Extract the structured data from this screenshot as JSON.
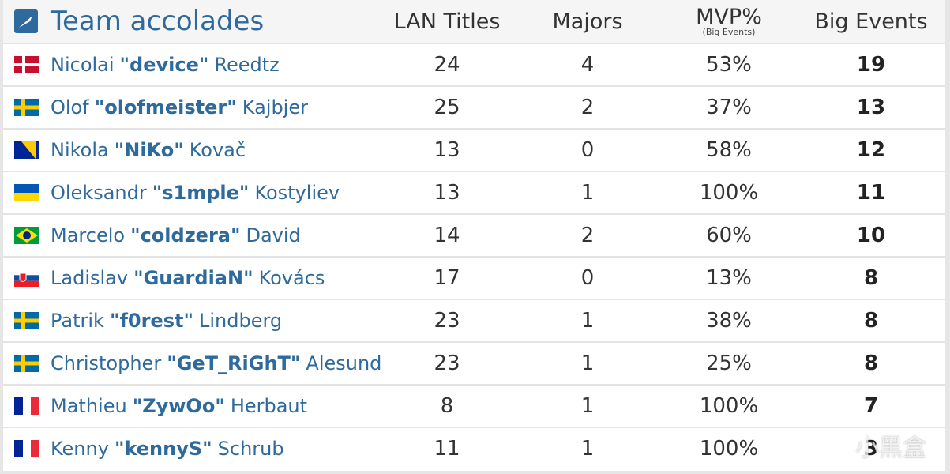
{
  "header": {
    "title": "Team accolades",
    "columns": [
      "LAN Titles",
      "Majors",
      "MVP%",
      "Big Events"
    ],
    "mvp_note": "(Big Events)"
  },
  "table": {
    "rows": [
      {
        "first": "Nicolai",
        "nick": "\"device\"",
        "last": "Reedtz",
        "lan": "24",
        "majors": "4",
        "mvp": "53%",
        "big": "19"
      },
      {
        "first": "Olof",
        "nick": "\"olofmeister\"",
        "last": "Kajbjer",
        "lan": "25",
        "majors": "2",
        "mvp": "37%",
        "big": "13"
      },
      {
        "first": "Nikola",
        "nick": "\"NiKo\"",
        "last": "Kovač",
        "lan": "13",
        "majors": "0",
        "mvp": "58%",
        "big": "12"
      },
      {
        "first": "Oleksandr",
        "nick": "\"s1mple\"",
        "last": "Kostyliev",
        "lan": "13",
        "majors": "1",
        "mvp": "100%",
        "big": "11"
      },
      {
        "first": "Marcelo",
        "nick": "\"coldzera\"",
        "last": "David",
        "lan": "14",
        "majors": "2",
        "mvp": "60%",
        "big": "10"
      },
      {
        "first": "Ladislav",
        "nick": "\"GuardiaN\"",
        "last": "Kovács",
        "lan": "17",
        "majors": "0",
        "mvp": "13%",
        "big": "8"
      },
      {
        "first": "Patrik",
        "nick": "\"f0rest\"",
        "last": "Lindberg",
        "lan": "23",
        "majors": "1",
        "mvp": "38%",
        "big": "8"
      },
      {
        "first": "Christopher",
        "nick": "\"GeT_RiGhT\"",
        "last": "Alesund",
        "lan": "23",
        "majors": "1",
        "mvp": "25%",
        "big": "8"
      },
      {
        "first": "Mathieu",
        "nick": "\"ZywOo\"",
        "last": "Herbaut",
        "lan": "8",
        "majors": "1",
        "mvp": "100%",
        "big": "7"
      },
      {
        "first": "Kenny",
        "nick": "\"kennyS\"",
        "last": "Schrub",
        "lan": "11",
        "majors": "1",
        "mvp": "100%",
        "big": "3"
      }
    ]
  },
  "watermark": "小黑盒"
}
